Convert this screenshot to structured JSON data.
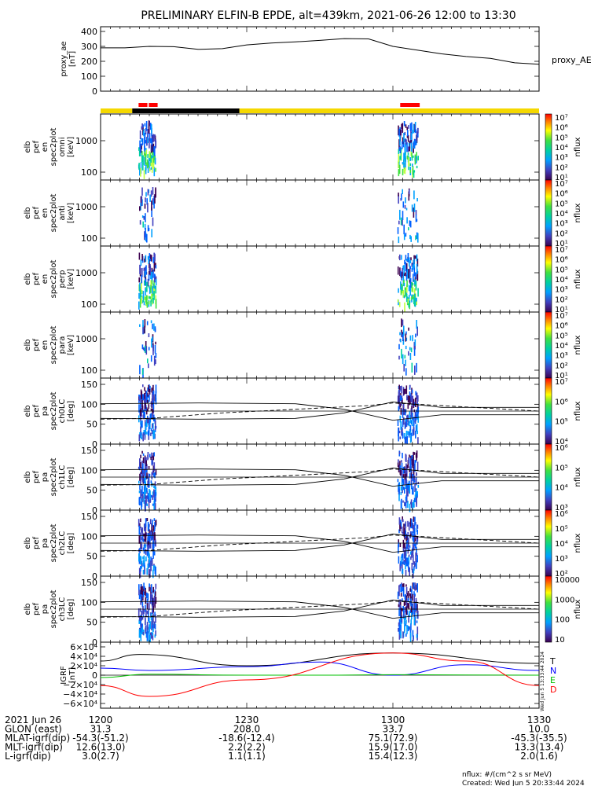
{
  "title": "PRELIMINARY ELFIN-B EPDE, alt=439km, 2021-06-26 12:00 to 13:30",
  "time_range": {
    "start": "12:00",
    "end": "13:30"
  },
  "colors": {
    "bar_yellow": "#f5d800",
    "bar_black": "#000000",
    "bar_red": "#ff0000",
    "igrf_T": "#000000",
    "igrf_N": "#0000ff",
    "igrf_E": "#00c000",
    "igrf_D": "#ff0000"
  },
  "panels": [
    {
      "id": "proxy_ae",
      "ylabel": [
        "proxy_ae",
        "[nT]"
      ],
      "yticks": [
        "400",
        "300",
        "200",
        "100",
        "0"
      ],
      "right_label": "proxy_AE"
    },
    {
      "id": "omni",
      "ylabel": [
        "elb",
        "pef",
        "en",
        "spec2plot",
        "omni",
        "[keV]"
      ],
      "yticks": [
        "1000",
        "100"
      ],
      "cb_label": "nflux",
      "cb_ticks": [
        "10⁷",
        "10⁶",
        "10⁵",
        "10⁴",
        "10³",
        "10²",
        "10¹"
      ]
    },
    {
      "id": "anti",
      "ylabel": [
        "elb",
        "pef",
        "en",
        "spec2plot",
        "anti",
        "[keV]"
      ],
      "yticks": [
        "1000",
        "100"
      ],
      "cb_label": "nflux",
      "cb_ticks": [
        "10⁷",
        "10⁶",
        "10⁵",
        "10⁴",
        "10³",
        "10²",
        "10¹"
      ]
    },
    {
      "id": "perp",
      "ylabel": [
        "elb",
        "pef",
        "en",
        "spec2plot",
        "perp",
        "[keV]"
      ],
      "yticks": [
        "1000",
        "100"
      ],
      "cb_label": "nflux",
      "cb_ticks": [
        "10⁷",
        "10⁶",
        "10⁵",
        "10⁴",
        "10³",
        "10²",
        "10¹"
      ]
    },
    {
      "id": "para",
      "ylabel": [
        "elb",
        "pef",
        "en",
        "spec2plot",
        "para",
        "[keV]"
      ],
      "yticks": [
        "1000",
        "100"
      ],
      "cb_label": "nflux",
      "cb_ticks": [
        "10⁷",
        "10⁶",
        "10⁵",
        "10⁴",
        "10³",
        "10²",
        "10¹"
      ]
    },
    {
      "id": "ch0LC",
      "ylabel": [
        "elb",
        "pef",
        "pa",
        "spec2plot",
        "ch0LC",
        "[deg]"
      ],
      "yticks": [
        "150",
        "100",
        "50",
        "0"
      ],
      "cb_label": "nflux",
      "cb_ticks": [
        "10⁷",
        "10⁶",
        "10⁵",
        "10⁴"
      ]
    },
    {
      "id": "ch1LC",
      "ylabel": [
        "elb",
        "pef",
        "pa",
        "spec2plot",
        "ch1LC",
        "[deg]"
      ],
      "yticks": [
        "150",
        "100",
        "50",
        "0"
      ],
      "cb_label": "nflux",
      "cb_ticks": [
        "10⁶",
        "10⁵",
        "10⁴",
        "10³"
      ]
    },
    {
      "id": "ch2LC",
      "ylabel": [
        "elb",
        "pef",
        "pa",
        "spec2plot",
        "ch2LC",
        "[deg]"
      ],
      "yticks": [
        "150",
        "100",
        "50",
        "0"
      ],
      "cb_label": "nflux",
      "cb_ticks": [
        "10⁶",
        "10⁵",
        "10⁴",
        "10³",
        "10²"
      ]
    },
    {
      "id": "ch3LC",
      "ylabel": [
        "elb",
        "pef",
        "pa",
        "spec2plot",
        "ch3LC",
        "[deg]"
      ],
      "yticks": [
        "150",
        "100",
        "50",
        "0"
      ],
      "cb_label": "nflux",
      "cb_ticks": [
        "10000",
        "1000",
        "100",
        "10"
      ]
    },
    {
      "id": "igrf",
      "ylabel": [
        "IGRF",
        "[nT]"
      ],
      "yticks": [
        "6×10⁴",
        "4×10⁴",
        "2×10⁴",
        "0",
        "−2×10⁴",
        "−4×10⁴",
        "−6×10⁴"
      ],
      "legend": [
        "T",
        "N",
        "E",
        "D"
      ]
    }
  ],
  "side_stamp": "Wed Jun  5 13:33:44 2024",
  "footer_rows": [
    {
      "label": "2021 Jun 26",
      "values": [
        "1200",
        "1230",
        "1300",
        "1330"
      ]
    },
    {
      "label": "GLON (east)",
      "values": [
        "31.3",
        "208.0",
        "33.7",
        "10.0"
      ]
    },
    {
      "label": "MLAT-igrf(dip)",
      "values": [
        "-54.3(-51.2)",
        "-18.6(-12.4)",
        "75.1(72.9)",
        "-45.3(-35.5)"
      ]
    },
    {
      "label": "MLT-igrf(dip)",
      "values": [
        "12.6(13.0)",
        "2.2(2.2)",
        "15.9(17.0)",
        "13.3(13.4)"
      ]
    },
    {
      "label": "L-igrf(dip)",
      "values": [
        "3.0(2.7)",
        "1.1(1.1)",
        "15.4(12.3)",
        "2.0(1.6)"
      ]
    }
  ],
  "footnote_units": "nflux: #/(cm^2 s sr MeV)",
  "footnote_created": "Created: Wed Jun  5 20:33:44 2024",
  "chart_data": {
    "type": "line",
    "x_unit": "minutes after 12:00",
    "proxy_ae": {
      "ylim": [
        0,
        400
      ],
      "x": [
        0,
        5,
        10,
        15,
        20,
        25,
        30,
        35,
        40,
        45,
        50,
        55,
        60,
        65,
        70,
        75,
        80,
        85,
        90
      ],
      "values": [
        290,
        290,
        300,
        298,
        280,
        285,
        310,
        322,
        330,
        340,
        352,
        350,
        300,
        275,
        250,
        232,
        220,
        190,
        180
      ]
    },
    "orbit_bar": [
      {
        "start": 0,
        "end": 6.5,
        "color": "yellow"
      },
      {
        "start": 6.5,
        "end": 28.5,
        "color": "black"
      },
      {
        "start": 28.5,
        "end": 90,
        "color": "yellow"
      }
    ],
    "science_zones": [
      {
        "start": 7.8,
        "end": 9.6
      },
      {
        "start": 9.9,
        "end": 11.7
      },
      {
        "start": 61.5,
        "end": 65.5
      }
    ],
    "igrf": {
      "ylim": [
        -60000,
        60000
      ],
      "series": [
        {
          "name": "T",
          "x": [
            0,
            8,
            30,
            60,
            90
          ],
          "values": [
            30000,
            44000,
            20000,
            47000,
            25000
          ]
        },
        {
          "name": "N",
          "x": [
            0,
            10,
            30,
            45,
            60,
            75,
            90
          ],
          "values": [
            15000,
            10000,
            18000,
            28000,
            0,
            22000,
            10000
          ]
        },
        {
          "name": "E",
          "x": [
            0,
            10,
            30,
            45,
            60,
            90
          ],
          "values": [
            -5000,
            2000,
            0,
            0,
            1000,
            0
          ]
        },
        {
          "name": "D",
          "x": [
            0,
            10,
            30,
            60,
            75,
            90
          ],
          "values": [
            -22000,
            -45000,
            -10000,
            47000,
            30000,
            -22000
          ]
        }
      ]
    },
    "pitch_angle_reference": {
      "ylim": [
        0,
        180
      ],
      "solid_upper": {
        "x": [
          0,
          20,
          40,
          50,
          60,
          70,
          90
        ],
        "values": [
          110,
          112,
          110,
          95,
          65,
          80,
          80
        ]
      },
      "solid_lower": {
        "x": [
          0,
          20,
          40,
          50,
          60,
          70,
          90
        ],
        "values": [
          70,
          68,
          70,
          85,
          115,
          100,
          100
        ]
      },
      "dashed": {
        "x": [
          0,
          10,
          25,
          40,
          55,
          60,
          70,
          90
        ],
        "values": [
          68,
          70,
          85,
          95,
          105,
          112,
          105,
          90
        ]
      },
      "horizontal": 90
    }
  }
}
